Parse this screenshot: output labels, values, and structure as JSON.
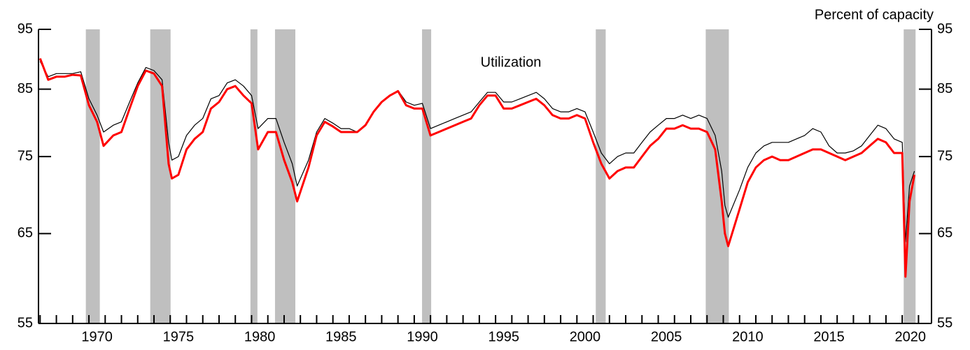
{
  "chart_data": {
    "type": "line",
    "title": "Percent of capacity",
    "annotations": [
      "Utilization"
    ],
    "log_y": true,
    "xlim": [
      1966.9,
      2021.8
    ],
    "ylim": [
      55,
      95
    ],
    "yticks": [
      55,
      65,
      75,
      85,
      95
    ],
    "xticks": [
      {
        "value": 1970.5,
        "label": "1970"
      },
      {
        "value": 1975.5,
        "label": "1975"
      },
      {
        "value": 1980.5,
        "label": "1980"
      },
      {
        "value": 1985.5,
        "label": "1985"
      },
      {
        "value": 1990.5,
        "label": "1990"
      },
      {
        "value": 1995.5,
        "label": "1995"
      },
      {
        "value": 2000.5,
        "label": "2000"
      },
      {
        "value": 2005.5,
        "label": "2005"
      },
      {
        "value": 2010.5,
        "label": "2010"
      },
      {
        "value": 2015.5,
        "label": "2015"
      },
      {
        "value": 2020.5,
        "label": "2020"
      }
    ],
    "recessions": [
      [
        1969.81,
        1970.67
      ],
      [
        1973.77,
        1975.02
      ],
      [
        1979.93,
        1980.36
      ],
      [
        1981.44,
        1982.69
      ],
      [
        1990.48,
        1991.04
      ],
      [
        2001.16,
        2001.77
      ],
      [
        2007.92,
        2009.34
      ],
      [
        2020.09,
        2020.82
      ]
    ],
    "recession_color": "#bfbfbf",
    "x": [
      1967.0,
      1967.5,
      1968.0,
      1968.5,
      1969.0,
      1969.5,
      1970.0,
      1970.5,
      1970.9,
      1971.5,
      1972.0,
      1972.5,
      1973.0,
      1973.5,
      1974.0,
      1974.5,
      1974.9,
      1975.1,
      1975.5,
      1976.0,
      1976.5,
      1977.0,
      1977.5,
      1978.0,
      1978.5,
      1979.0,
      1979.5,
      1980.0,
      1980.4,
      1981.0,
      1981.5,
      1982.0,
      1982.5,
      1982.8,
      1983.5,
      1984.0,
      1984.5,
      1985.0,
      1985.5,
      1986.0,
      1986.5,
      1987.0,
      1987.5,
      1988.0,
      1988.5,
      1989.0,
      1989.5,
      1990.0,
      1990.5,
      1991.0,
      1991.5,
      1992.0,
      1992.5,
      1993.0,
      1993.5,
      1994.0,
      1994.5,
      1995.0,
      1995.5,
      1996.0,
      1996.5,
      1997.0,
      1997.5,
      1998.0,
      1998.5,
      1999.0,
      1999.5,
      2000.0,
      2000.5,
      2001.0,
      2001.5,
      2002.0,
      2002.5,
      2003.0,
      2003.5,
      2004.0,
      2004.5,
      2005.0,
      2005.5,
      2006.0,
      2006.5,
      2007.0,
      2007.5,
      2008.0,
      2008.5,
      2008.9,
      2009.1,
      2009.3,
      2010.0,
      2010.5,
      2011.0,
      2011.5,
      2012.0,
      2012.5,
      2013.0,
      2013.5,
      2014.0,
      2014.5,
      2015.0,
      2015.5,
      2016.0,
      2016.5,
      2017.0,
      2017.5,
      2018.0,
      2018.5,
      2019.0,
      2019.5,
      2020.0,
      2020.2,
      2020.45,
      2020.75
    ],
    "series": [
      {
        "color": "#000000",
        "width": 1.2,
        "values": [
          89.5,
          87,
          87.5,
          87.5,
          87.5,
          87.8,
          83.5,
          81,
          78.5,
          79.5,
          80,
          83,
          86,
          88.5,
          88,
          86.5,
          77,
          74.5,
          75,
          78,
          79.5,
          80.5,
          83.5,
          84,
          86,
          86.5,
          85.5,
          84,
          79,
          80.5,
          80.5,
          77,
          74,
          71,
          74.5,
          78.5,
          80.5,
          79.8,
          79,
          79,
          78.5,
          79.5,
          81.5,
          83,
          84,
          84.8,
          83,
          82.5,
          82.8,
          79,
          79.5,
          80,
          80.5,
          81,
          81.5,
          83,
          84.5,
          84.5,
          83,
          83,
          83.5,
          84,
          84.5,
          83.5,
          82,
          81.5,
          81.5,
          82,
          81.5,
          78.5,
          75.5,
          74,
          75,
          75.5,
          75.5,
          77,
          78.5,
          79.5,
          80.5,
          80.5,
          81,
          80.5,
          81,
          80.5,
          78,
          73,
          68.5,
          67,
          70.5,
          73.5,
          75.5,
          76.5,
          77,
          77,
          77,
          77.5,
          78,
          79,
          78.5,
          76.5,
          75.5,
          75.5,
          75.8,
          76.5,
          78,
          79.5,
          79,
          77.5,
          77,
          64,
          71,
          73
        ]
      },
      {
        "color": "#ff0000",
        "width": 3,
        "values": [
          90,
          86.5,
          87,
          87,
          87.3,
          87.2,
          82.5,
          80,
          76.5,
          78,
          78.5,
          82,
          85.5,
          88,
          87.5,
          85.5,
          74,
          72,
          72.5,
          76,
          77.5,
          78.5,
          82,
          83,
          85,
          85.5,
          84,
          82.8,
          76,
          78.5,
          78.5,
          74.5,
          71.5,
          69,
          73.5,
          78,
          80,
          79.3,
          78.5,
          78.5,
          78.5,
          79.5,
          81.5,
          83,
          84,
          84.7,
          82.5,
          82,
          82,
          78,
          78.5,
          79,
          79.5,
          80,
          80.5,
          82.5,
          84,
          84,
          82,
          82,
          82.5,
          83,
          83.5,
          82.5,
          81,
          80.5,
          80.5,
          81,
          80.5,
          77,
          74,
          72,
          73,
          73.5,
          73.5,
          75,
          76.5,
          77.5,
          79,
          79,
          79.5,
          79,
          79,
          78.5,
          76,
          69,
          65,
          63.5,
          68,
          71.5,
          73.5,
          74.5,
          75,
          74.5,
          74.5,
          75,
          75.5,
          76,
          76,
          75.5,
          75,
          74.5,
          75,
          75.5,
          76.5,
          77.5,
          77,
          75.5,
          75.5,
          60,
          69,
          72.5
        ]
      }
    ]
  }
}
